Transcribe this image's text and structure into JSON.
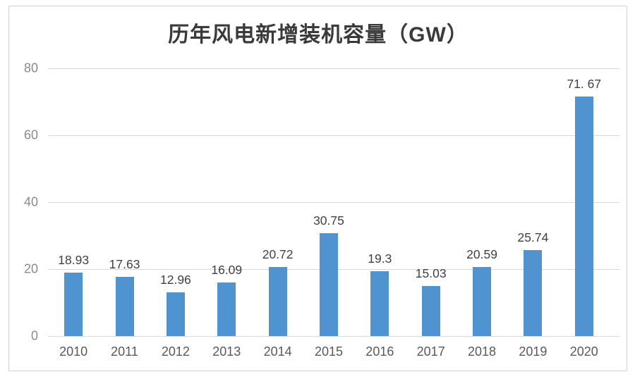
{
  "chart_data": {
    "type": "bar",
    "title": "历年风电新增装机容量（GW）",
    "categories": [
      "2010",
      "2011",
      "2012",
      "2013",
      "2014",
      "2015",
      "2016",
      "2017",
      "2018",
      "2019",
      "2020"
    ],
    "values": [
      18.93,
      17.63,
      12.96,
      16.09,
      20.72,
      30.75,
      19.3,
      15.03,
      20.59,
      25.74,
      71.67
    ],
    "value_labels": [
      "18.93",
      "17.63",
      "12.96",
      "16.09",
      "20.72",
      "30.75",
      "19.3",
      "15.03",
      "20.59",
      "25.74",
      "71. 67"
    ],
    "xlabel": "",
    "ylabel": "",
    "ylim": [
      0,
      80
    ],
    "yticks": [
      0,
      20,
      40,
      60,
      80
    ],
    "grid": "horizontal",
    "legend": "none",
    "colors": {
      "bar": "#4f93d0",
      "gridline": "#d9d9d9",
      "y_tick_label": "#8a8a8a",
      "x_tick_label": "#595959",
      "value_label": "#404040",
      "title": "#3a3a3a",
      "frame_border": "#cfcfcf",
      "background": "#ffffff"
    }
  }
}
